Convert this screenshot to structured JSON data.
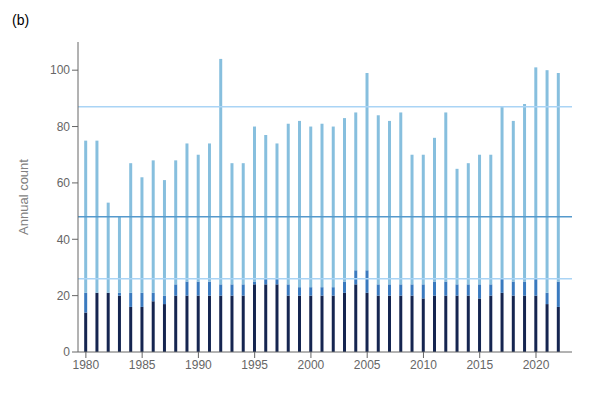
{
  "chart_data": {
    "type": "bar",
    "title": "(b)",
    "y_label": "Annual count",
    "stacked": true,
    "grid": false,
    "x": [
      1980,
      1981,
      1982,
      1983,
      1984,
      1985,
      1986,
      1987,
      1988,
      1989,
      1990,
      1991,
      1992,
      1993,
      1994,
      1995,
      1996,
      1997,
      1998,
      1999,
      2000,
      2001,
      2002,
      2003,
      2004,
      2005,
      2006,
      2007,
      2008,
      2009,
      2010,
      2011,
      2012,
      2013,
      2014,
      2015,
      2016,
      2017,
      2018,
      2019,
      2020,
      2021,
      2022
    ],
    "series": [
      {
        "color": "#152550",
        "values": [
          14,
          21,
          21,
          20,
          16,
          16,
          18,
          17,
          20,
          20,
          20,
          20,
          20,
          20,
          20,
          24,
          24,
          24,
          20,
          20,
          20,
          20,
          20,
          21,
          24,
          21,
          20,
          20,
          20,
          20,
          19,
          20,
          20,
          20,
          20,
          19,
          20,
          21,
          20,
          20,
          20,
          17,
          16
        ]
      },
      {
        "color": "#3a7abf",
        "values": [
          7,
          0,
          0,
          1,
          5,
          5,
          3,
          3,
          4,
          5,
          5,
          5,
          4,
          4,
          4,
          1,
          2,
          2,
          4,
          3,
          3,
          3,
          3,
          4,
          5,
          8,
          4,
          4,
          4,
          4,
          5,
          5,
          5,
          4,
          4,
          5,
          4,
          5,
          5,
          5,
          6,
          4,
          9
        ]
      },
      {
        "color": "#87bfde",
        "values": [
          54,
          54,
          32,
          27,
          46,
          41,
          47,
          41,
          44,
          49,
          45,
          49,
          80,
          43,
          43,
          55,
          51,
          48,
          57,
          59,
          57,
          58,
          57,
          58,
          56,
          70,
          60,
          58,
          61,
          46,
          46,
          51,
          60,
          41,
          43,
          46,
          46,
          61,
          57,
          63,
          75,
          79,
          74
        ]
      }
    ],
    "hlines": [
      {
        "value": 26.0,
        "color": "#aad4f5"
      },
      {
        "value": 48.0,
        "color": "#5599cc"
      },
      {
        "value": 87.0,
        "color": "#aad4f5"
      }
    ],
    "xlim": [
      1979.3,
      2023.2
    ],
    "xticks": [
      1980,
      1985,
      1990,
      1995,
      2000,
      2005,
      2010,
      2015,
      2020
    ],
    "ylim": [
      0,
      110
    ],
    "yticks": [
      0,
      20,
      40,
      60,
      80,
      100
    ]
  }
}
